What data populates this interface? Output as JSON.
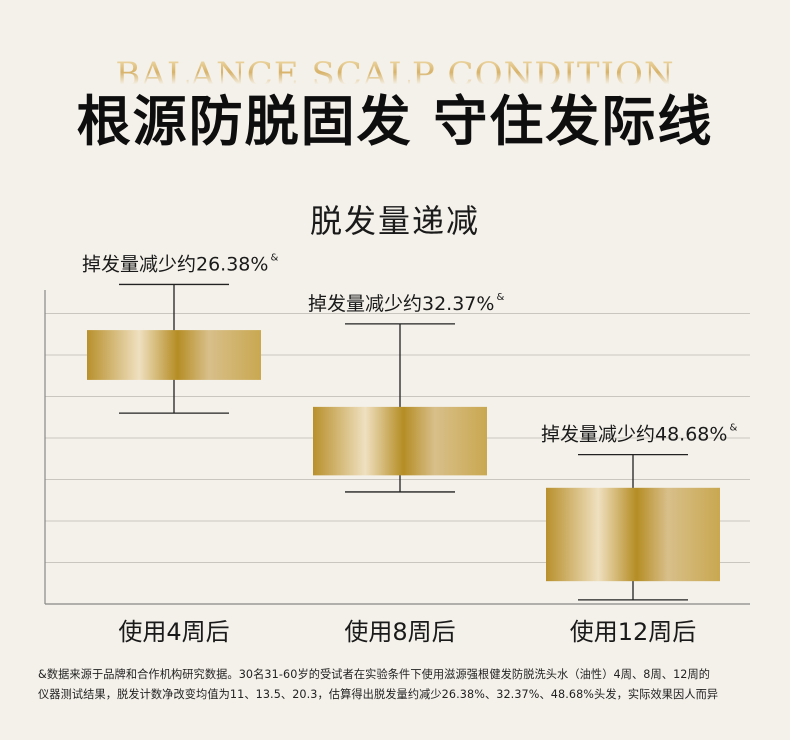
{
  "header": {
    "eyebrow": "BALANCE SCALP CONDITION",
    "headline": "根源防脱固发  守住发际线",
    "subtitle": "脱发量递减"
  },
  "chart_data": {
    "type": "box",
    "title": "脱发量递减",
    "categories": [
      "使用4周后",
      "使用8周后",
      "使用12周后"
    ],
    "annotations": [
      "掉发量减少约26.38%",
      "掉发量减少约32.37%",
      "掉发量减少约48.68%"
    ],
    "annotation_mark": "&",
    "boxes": [
      {
        "whisker_high": 7.7,
        "q3": 6.6,
        "q1": 5.4,
        "whisker_low": 4.6
      },
      {
        "whisker_high": 6.75,
        "q3": 4.75,
        "q1": 3.1,
        "whisker_low": 2.7
      },
      {
        "whisker_high": 3.6,
        "q3": 2.8,
        "q1": 0.55,
        "whisker_low": 0.1
      }
    ],
    "ylim": [
      0,
      8
    ],
    "gridlines": [
      1,
      2,
      3,
      4,
      5,
      6,
      7
    ],
    "grid": true,
    "colors": {
      "gold_dark": "#b8902c",
      "gold_light": "#efe0c0",
      "axis": "#888888",
      "whisker": "#222222"
    }
  },
  "footnote": {
    "line1": "&数据来源于品牌和合作机构研究数据。30名31-60岁的受试者在实验条件下使用滋源强根健发防脱洗头水（油性）4周、8周、12周的",
    "line2": "仪器测试结果，脱发计数净改变均值为11、13.5、20.3，估算得出脱发量约减少26.38%、32.37%、48.68%头发，实际效果因人而异"
  }
}
